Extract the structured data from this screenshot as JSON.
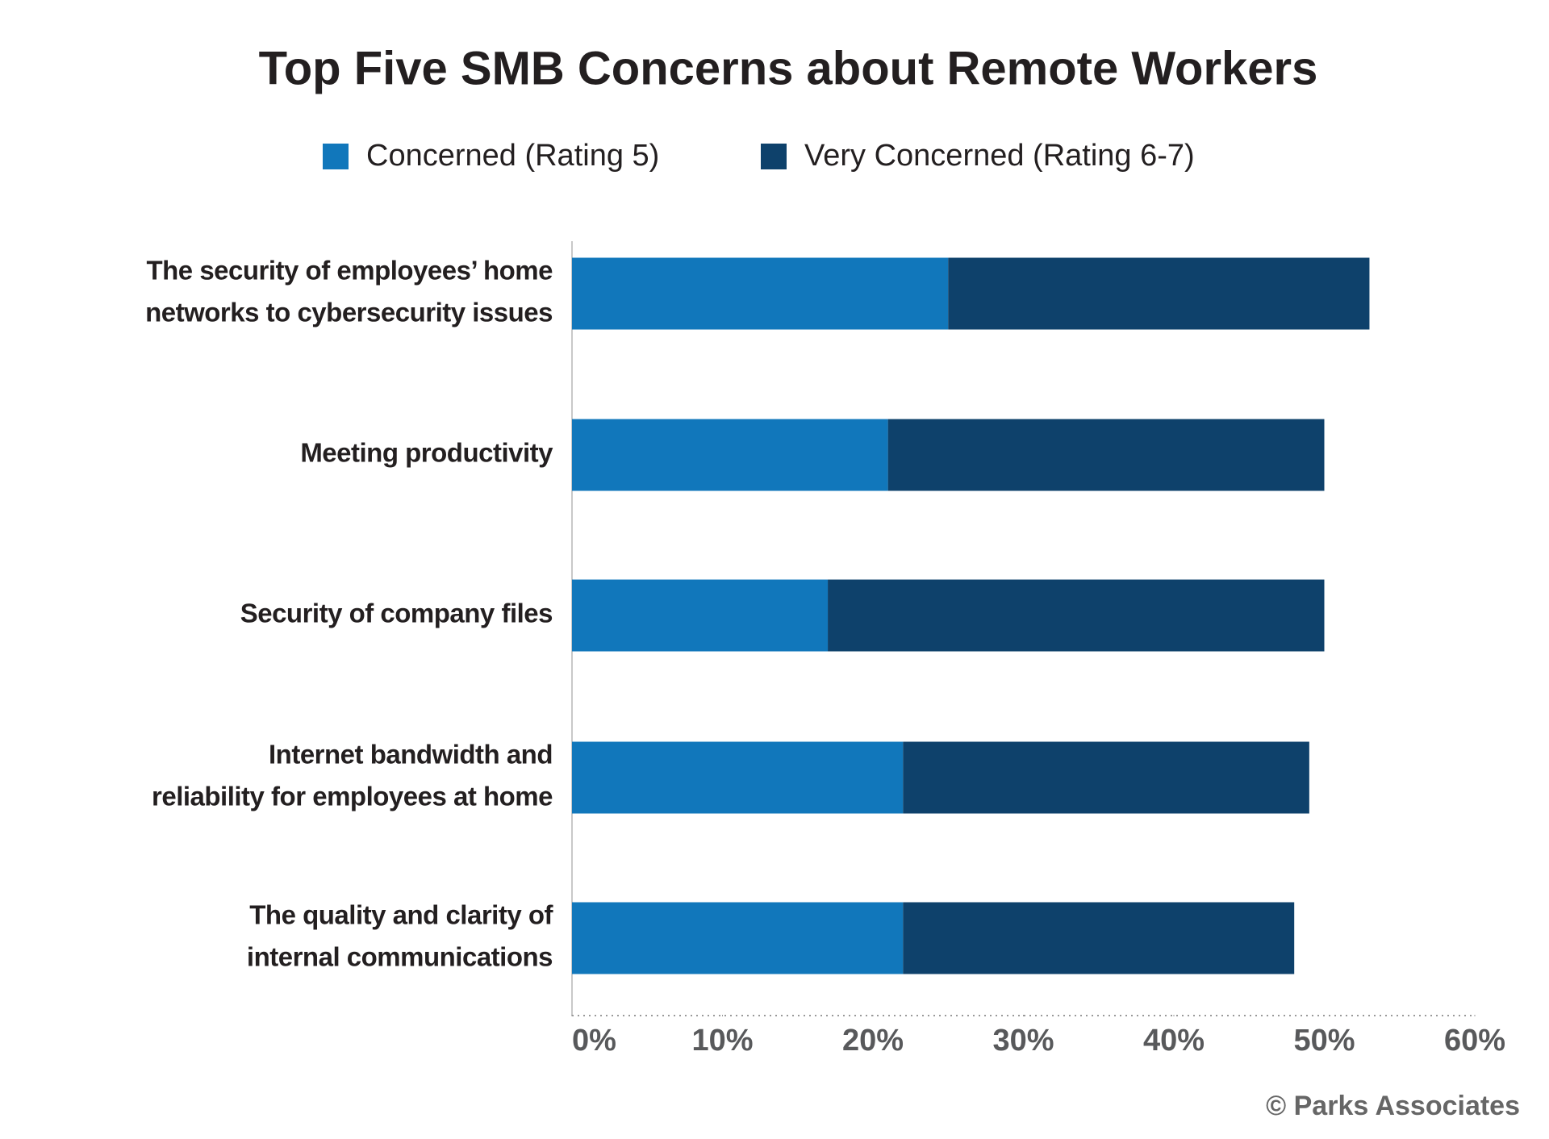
{
  "chart_data": {
    "type": "stacked_bar_horizontal",
    "title": "Top Five SMB Concerns about Remote Workers",
    "categories": [
      [
        "The security of employees’ home",
        "networks to cybersecurity issues"
      ],
      [
        "Meeting productivity"
      ],
      [
        "Security of company files"
      ],
      [
        "Internet bandwidth and",
        "reliability for employees at home"
      ],
      [
        "The quality and clarity of",
        "internal communications"
      ]
    ],
    "series": [
      {
        "name": "Concerned (Rating 5)",
        "color": "#1177bb",
        "values": [
          25,
          21,
          17,
          22,
          22
        ]
      },
      {
        "name": "Very Concerned (Rating 6-7)",
        "color": "#0e416b",
        "values": [
          28,
          29,
          33,
          27,
          26
        ]
      }
    ],
    "xlim": [
      0,
      60
    ],
    "xticks": [
      {
        "value": 0,
        "label": "0%"
      },
      {
        "value": 10,
        "label": "10%"
      },
      {
        "value": 20,
        "label": "20%"
      },
      {
        "value": 30,
        "label": "30%"
      },
      {
        "value": 40,
        "label": "40%"
      },
      {
        "value": 50,
        "label": "50%"
      },
      {
        "value": 60,
        "label": "60%"
      }
    ],
    "legend": "top",
    "source": "© Parks Associates"
  }
}
